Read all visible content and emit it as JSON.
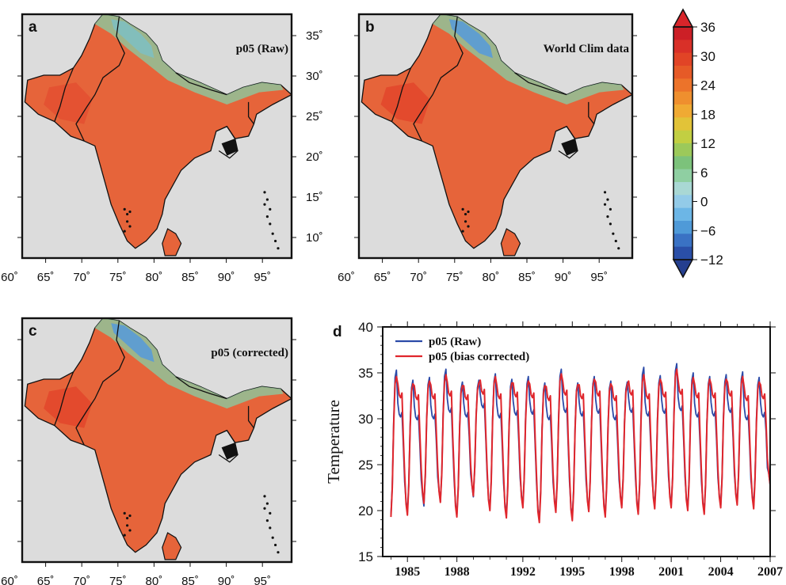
{
  "figure": {
    "panels": [
      {
        "letter": "a",
        "title": "p05 (Raw)"
      },
      {
        "letter": "b",
        "title": "World Clim data"
      },
      {
        "letter": "c",
        "title": "p05 (corrected)"
      }
    ],
    "map_lon_ticks": [
      "60˚",
      "65˚",
      "70˚",
      "75˚",
      "80˚",
      "85˚",
      "90˚",
      "95˚"
    ],
    "map_lat_ticks": [
      "35˚",
      "30˚",
      "25˚",
      "20˚",
      "15˚",
      "10˚"
    ],
    "colorbar_ticks": [
      "36",
      "30",
      "24",
      "18",
      "12",
      "6",
      "0",
      "−6",
      "−12"
    ],
    "colorbar_colors": [
      "#2a4fa8",
      "#3a72c4",
      "#4f9ad8",
      "#6cb6e6",
      "#93cbe8",
      "#a9d8d4",
      "#8fcfa2",
      "#7cc27b",
      "#9cc95a",
      "#c2cf42",
      "#e2c338",
      "#f0aa33",
      "#ef8f2e",
      "#ec732a",
      "#e65a27",
      "#e14426",
      "#d93028",
      "#cc1f26"
    ],
    "colorbar_end_colors": {
      "low": "#253f8f",
      "high": "#d9252a"
    },
    "land_color": "#e6643a",
    "ocean_color": "#dcdcdc"
  },
  "chart_data": {
    "type": "line",
    "panel_letter": "d",
    "ylabel": "Temperature",
    "xlabel": "",
    "ylim": [
      15,
      40
    ],
    "xlim": [
      1983.5,
      2007
    ],
    "y_ticks": [
      15,
      20,
      25,
      30,
      35,
      40
    ],
    "x_ticks": [
      1985,
      1988,
      1992,
      1995,
      1998,
      2001,
      2004,
      2007
    ],
    "grid": false,
    "legend_position": "top-left",
    "series": [
      {
        "name": "p05 (Raw)",
        "color": "#2b4aa8",
        "years": [
          1984,
          1985,
          1986,
          1987,
          1988,
          1989,
          1990,
          1991,
          1992,
          1993,
          1994,
          1995,
          1996,
          1997,
          1998,
          1999,
          2000,
          2001,
          2002,
          2003,
          2004,
          2005,
          2006
        ],
        "winter_min": [
          19.5,
          19.8,
          20.5,
          21.0,
          19.5,
          21.5,
          20.2,
          19.5,
          20.5,
          19.0,
          20.0,
          19.2,
          20.0,
          19.5,
          20.5,
          19.8,
          20.5,
          20.5,
          20.2,
          19.8,
          20.5,
          20.8,
          20.5
        ],
        "spring_peak": [
          35.3,
          34.2,
          34.5,
          35.4,
          34.0,
          34.2,
          34.9,
          34.3,
          34.6,
          33.9,
          35.4,
          33.9,
          34.6,
          34.1,
          34.0,
          35.6,
          34.7,
          36.0,
          35.0,
          34.6,
          34.8,
          35.1,
          34.5
        ],
        "summer_level": [
          30.5,
          30.2,
          30.3,
          31.0,
          30.5,
          31.5,
          30.4,
          30.7,
          30.8,
          30.2,
          31.0,
          30.6,
          30.9,
          30.2,
          31.0,
          30.6,
          30.9,
          31.2,
          30.5,
          30.6,
          31.0,
          30.2,
          30.5
        ]
      },
      {
        "name": "p05 (bias corrected)",
        "color": "#e0262c",
        "years": [
          1984,
          1985,
          1986,
          1987,
          1988,
          1989,
          1990,
          1991,
          1992,
          1993,
          1994,
          1995,
          1996,
          1997,
          1998,
          1999,
          2000,
          2001,
          2002,
          2003,
          2004,
          2005,
          2006
        ],
        "winter_min": [
          19.3,
          19.5,
          20.8,
          20.9,
          19.3,
          21.6,
          20.0,
          19.2,
          20.3,
          18.7,
          19.8,
          18.9,
          19.9,
          19.3,
          20.3,
          19.6,
          20.2,
          20.3,
          20.0,
          19.6,
          20.3,
          20.6,
          20.2
        ],
        "spring_peak": [
          34.6,
          33.8,
          34.1,
          34.8,
          33.6,
          33.9,
          34.6,
          33.9,
          34.1,
          33.6,
          34.9,
          33.7,
          34.3,
          33.8,
          33.7,
          34.8,
          34.3,
          35.4,
          34.5,
          34.3,
          34.3,
          34.6,
          34.0
        ],
        "summer_level": [
          32.6,
          32.4,
          32.5,
          32.8,
          32.4,
          33.0,
          32.5,
          32.7,
          32.6,
          32.3,
          32.9,
          32.5,
          32.8,
          32.3,
          32.9,
          32.5,
          32.7,
          33.0,
          32.6,
          32.6,
          32.8,
          32.3,
          32.5
        ]
      }
    ],
    "last_value": 22.8
  }
}
